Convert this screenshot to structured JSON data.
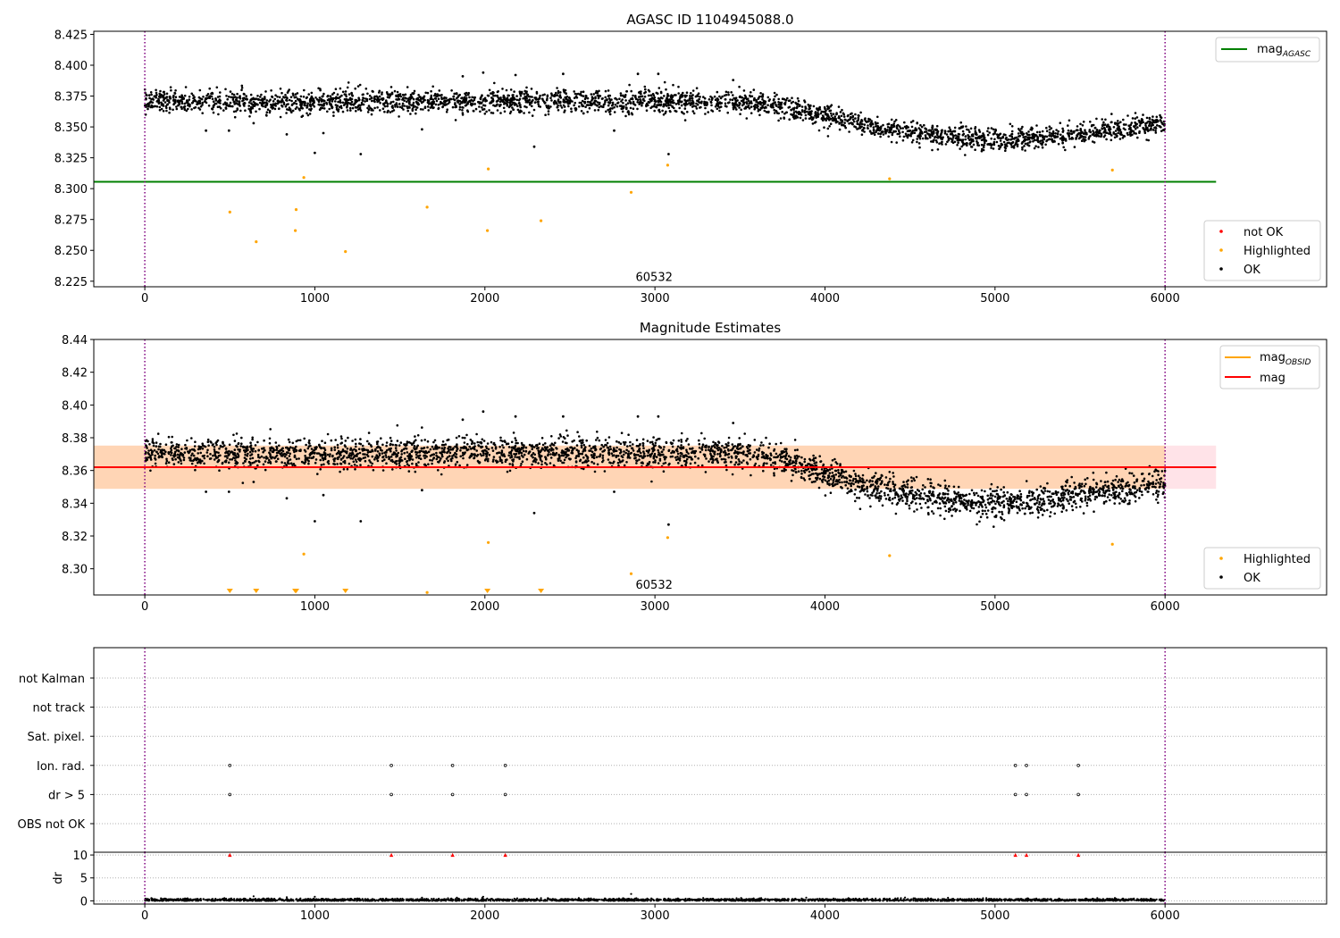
{
  "chart_data": [
    {
      "type": "scatter",
      "title": "AGASC ID 1104945088.0",
      "xlim": [
        -300,
        6950
      ],
      "ylim": [
        8.2205,
        8.4275
      ],
      "xticks": [
        0,
        1000,
        2000,
        3000,
        4000,
        5000,
        6000
      ],
      "yticks": [
        8.225,
        8.25,
        8.275,
        8.3,
        8.325,
        8.35,
        8.375,
        8.4,
        8.425
      ],
      "ytick_decimals": 3,
      "vlines": [
        0,
        6000
      ],
      "annotation": {
        "x": 2995,
        "y": 8.228,
        "text": "60532"
      },
      "hlines": [
        {
          "name": "mag_AGASC",
          "y": 8.3055,
          "x_range": [
            -300,
            6300
          ],
          "color": "#008000"
        }
      ],
      "series": [
        {
          "name": "OK",
          "kind": "ok-trend",
          "color": "#000000",
          "x_range": [
            0,
            6000
          ],
          "count": 3200,
          "trend": [
            [
              0,
              8.371
            ],
            [
              1000,
              8.37
            ],
            [
              2000,
              8.371
            ],
            [
              3000,
              8.371
            ],
            [
              3600,
              8.37
            ],
            [
              3800,
              8.365
            ],
            [
              4000,
              8.358
            ],
            [
              4300,
              8.35
            ],
            [
              4700,
              8.342
            ],
            [
              5000,
              8.34
            ],
            [
              5300,
              8.341
            ],
            [
              5500,
              8.345
            ],
            [
              6000,
              8.352
            ]
          ],
          "spread": 0.0045,
          "points": [
            [
              360,
              8.347
            ],
            [
              495,
              8.347
            ],
            [
              640,
              8.353
            ],
            [
              835,
              8.344
            ],
            [
              1000,
              8.329
            ],
            [
              1050,
              8.345
            ],
            [
              1270,
              8.328
            ],
            [
              1630,
              8.348
            ],
            [
              2290,
              8.334
            ],
            [
              2460,
              8.393
            ],
            [
              2580,
              8.361
            ],
            [
              2760,
              8.347
            ],
            [
              3080,
              8.328
            ],
            [
              3460,
              8.388
            ],
            [
              1870,
              8.391
            ],
            [
              1990,
              8.394
            ],
            [
              2180,
              8.392
            ],
            [
              2900,
              8.393
            ],
            [
              3020,
              8.393
            ]
          ]
        },
        {
          "name": "Highlighted",
          "kind": "points",
          "color": "#FFA500",
          "points": [
            [
              500,
              8.281
            ],
            [
              655,
              8.257
            ],
            [
              890,
              8.283
            ],
            [
              885,
              8.266
            ],
            [
              935,
              8.309
            ],
            [
              1180,
              8.249
            ],
            [
              1660,
              8.285
            ],
            [
              2020,
              8.316
            ],
            [
              2015,
              8.266
            ],
            [
              2330,
              8.274
            ],
            [
              2860,
              8.297
            ],
            [
              3075,
              8.319
            ],
            [
              4380,
              8.308
            ],
            [
              5690,
              8.315
            ]
          ]
        },
        {
          "name": "not OK",
          "kind": "points",
          "color": "#FF0000",
          "points": []
        }
      ],
      "legends": [
        {
          "position": "top-right",
          "entries": [
            {
              "label": "mag",
              "sub": "AGASC",
              "kind": "line",
              "color": "#008000"
            }
          ]
        },
        {
          "position": "bottom-right",
          "entries": [
            {
              "label": "not OK",
              "kind": "dot",
              "color": "#FF0000"
            },
            {
              "label": "Highlighted",
              "kind": "dot",
              "color": "#FFA500"
            },
            {
              "label": "OK",
              "kind": "dot",
              "color": "#000000"
            }
          ]
        }
      ]
    },
    {
      "type": "scatter",
      "title": "Magnitude Estimates",
      "xlim": [
        -300,
        6950
      ],
      "ylim": [
        8.284,
        8.44
      ],
      "xticks": [
        0,
        1000,
        2000,
        3000,
        4000,
        5000,
        6000
      ],
      "yticks": [
        8.3,
        8.32,
        8.34,
        8.36,
        8.38,
        8.4,
        8.42,
        8.44
      ],
      "ytick_decimals": 2,
      "vlines": [
        0,
        6000
      ],
      "annotation": {
        "x": 2995,
        "y": 8.29,
        "text": "60532"
      },
      "bands": [
        {
          "y": [
            8.3488,
            8.3752
          ],
          "x_range": [
            -300,
            6300
          ],
          "color": "#FFC0CB",
          "opacity": 0.45
        },
        {
          "y": [
            8.3488,
            8.3752
          ],
          "x_range": [
            -300,
            6000
          ],
          "color": "#FFA500",
          "opacity": 0.22
        }
      ],
      "hlines": [
        {
          "name": "mag_OBSID",
          "kind": "obsid-steps",
          "color": "#FFA500",
          "y": 8.362,
          "x_range": [
            -300,
            6300
          ]
        },
        {
          "name": "mag",
          "y": 8.362,
          "x_range": [
            -300,
            6300
          ],
          "color": "#FF0000"
        }
      ],
      "series": [
        {
          "name": "OK",
          "kind": "ok-trend",
          "color": "#000000",
          "x_range": [
            0,
            6000
          ],
          "count": 3200,
          "trend": [
            [
              0,
              8.371
            ],
            [
              1000,
              8.37
            ],
            [
              2000,
              8.371
            ],
            [
              3000,
              8.371
            ],
            [
              3600,
              8.37
            ],
            [
              3800,
              8.365
            ],
            [
              4000,
              8.358
            ],
            [
              4300,
              8.35
            ],
            [
              4700,
              8.342
            ],
            [
              5000,
              8.34
            ],
            [
              5300,
              8.341
            ],
            [
              5500,
              8.345
            ],
            [
              6000,
              8.352
            ]
          ],
          "spread": 0.0045,
          "points": [
            [
              360,
              8.347
            ],
            [
              495,
              8.347
            ],
            [
              640,
              8.353
            ],
            [
              835,
              8.343
            ],
            [
              1000,
              8.329
            ],
            [
              1050,
              8.345
            ],
            [
              1270,
              8.329
            ],
            [
              1630,
              8.348
            ],
            [
              2290,
              8.334
            ],
            [
              2460,
              8.393
            ],
            [
              2580,
              8.361
            ],
            [
              2760,
              8.347
            ],
            [
              3080,
              8.327
            ],
            [
              3460,
              8.389
            ],
            [
              1870,
              8.391
            ],
            [
              1990,
              8.396
            ],
            [
              2180,
              8.393
            ],
            [
              2900,
              8.393
            ],
            [
              3020,
              8.393
            ]
          ]
        },
        {
          "name": "Highlighted",
          "kind": "points",
          "color": "#FFA500",
          "points": [
            [
              935,
              8.309
            ],
            [
              2020,
              8.316
            ],
            [
              2860,
              8.297
            ],
            [
              3075,
              8.319
            ],
            [
              4380,
              8.308
            ],
            [
              5690,
              8.315
            ],
            [
              1660,
              8.2855
            ]
          ]
        },
        {
          "name": "Highlighted below axis",
          "kind": "markers-low",
          "color": "#FFA500",
          "marker": "triangle-down",
          "x": [
            500,
            655,
            885,
            890,
            1180,
            2015,
            2330
          ]
        }
      ],
      "legends": [
        {
          "position": "top-right",
          "entries": [
            {
              "label": "mag",
              "sub": "OBSID",
              "kind": "line",
              "color": "#FFA500"
            },
            {
              "label": "mag",
              "kind": "line",
              "color": "#FF0000"
            }
          ]
        },
        {
          "position": "bottom-right",
          "entries": [
            {
              "label": "Highlighted",
              "kind": "dot",
              "color": "#FFA500"
            },
            {
              "label": "OK",
              "kind": "dot",
              "color": "#000000"
            }
          ]
        }
      ]
    },
    {
      "type": "scatter",
      "title": "",
      "xlim": [
        -300,
        6950
      ],
      "xticks": [
        0,
        1000,
        2000,
        3000,
        4000,
        5000,
        6000
      ],
      "vlines": [
        0,
        6000
      ],
      "flag_rows": [
        "not Kalman",
        "not track",
        "Sat. pixel.",
        "Ion. rad.",
        "dr > 5",
        "OBS not OK"
      ],
      "flags": {
        "Ion. rad.": [
          500,
          1450,
          1810,
          2120,
          5120,
          5185,
          5490
        ],
        "dr > 5": [
          500,
          1450,
          1810,
          2120,
          5120,
          5185,
          5490
        ]
      }
    },
    {
      "type": "scatter",
      "title": "",
      "ylabel": "dr",
      "xlim": [
        -300,
        6950
      ],
      "ylim": [
        -0.7,
        10.6
      ],
      "yticks": [
        0,
        5,
        10
      ],
      "xticks": [
        0,
        1000,
        2000,
        3000,
        4000,
        5000,
        6000
      ],
      "vlines": [
        0,
        6000
      ],
      "series": [
        {
          "name": "dr",
          "kind": "noise",
          "color": "#000000",
          "x_range": [
            0,
            6000
          ],
          "count": 2600,
          "base": 0.2,
          "spread": 0.15,
          "points": [
            [
              640,
              1.0
            ],
            [
              835,
              0.8
            ],
            [
              1000,
              0.9
            ],
            [
              1630,
              0.7
            ],
            [
              1990,
              0.9
            ],
            [
              2330,
              0.6
            ],
            [
              2860,
              1.5
            ],
            [
              3080,
              0.5
            ]
          ]
        },
        {
          "name": "dr clipped",
          "kind": "markers-high",
          "color": "#FF0000",
          "marker": "triangle-up",
          "y": 10,
          "x": [
            500,
            1450,
            1810,
            2120,
            5120,
            5185,
            5490
          ]
        }
      ]
    }
  ]
}
